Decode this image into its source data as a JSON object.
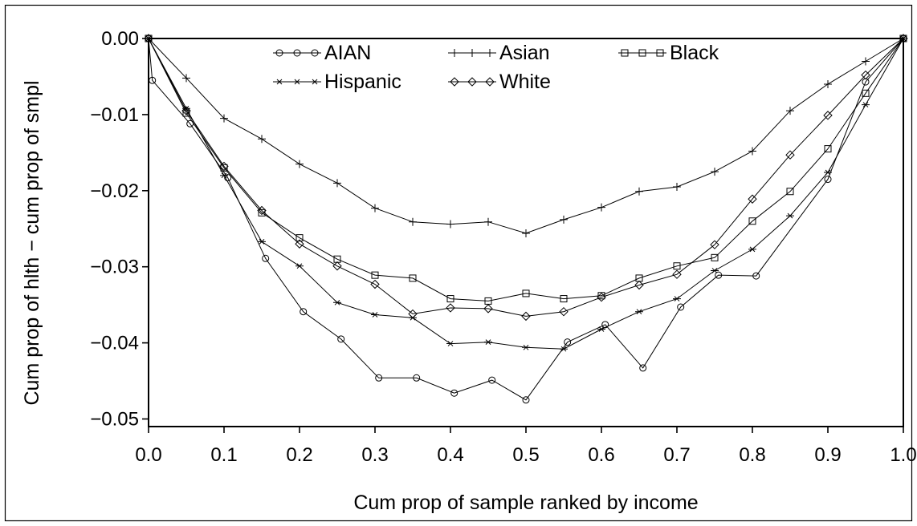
{
  "chart_data": {
    "type": "line",
    "title": "",
    "xlabel": "Cum prop of sample ranked by income",
    "ylabel": "Cum prop of hlth − cum prop of smpl",
    "xlim": [
      0.0,
      1.0
    ],
    "ylim": [
      -0.051,
      0.0
    ],
    "x_ticks": [
      "0.0",
      "0.1",
      "0.2",
      "0.3",
      "0.4",
      "0.5",
      "0.6",
      "0.7",
      "0.8",
      "0.9",
      "1.0"
    ],
    "y_ticks": [
      "0.00",
      "−0.01",
      "−0.02",
      "−0.03",
      "−0.04",
      "−0.05"
    ],
    "grid": false,
    "legend_position": "top",
    "series": [
      {
        "name": "AIAN",
        "marker": "circle",
        "x": [
          0.0,
          0.005,
          0.055,
          0.105,
          0.155,
          0.205,
          0.255,
          0.305,
          0.355,
          0.405,
          0.455,
          0.5,
          0.555,
          0.605,
          0.655,
          0.705,
          0.755,
          0.805,
          0.9,
          0.95,
          1.0
        ],
        "y": [
          0.0,
          -0.0055,
          -0.0112,
          -0.0183,
          -0.0289,
          -0.0359,
          -0.0395,
          -0.0446,
          -0.0446,
          -0.0466,
          -0.0449,
          -0.0475,
          -0.0399,
          -0.0376,
          -0.0433,
          -0.0353,
          -0.0311,
          -0.0312,
          -0.0185,
          -0.0057,
          0.0
        ]
      },
      {
        "name": "Asian",
        "marker": "plus",
        "x": [
          0.0,
          0.05,
          0.1,
          0.15,
          0.2,
          0.25,
          0.3,
          0.35,
          0.4,
          0.45,
          0.5,
          0.55,
          0.6,
          0.65,
          0.7,
          0.75,
          0.8,
          0.85,
          0.9,
          0.95,
          1.0
        ],
        "y": [
          0.0,
          -0.0052,
          -0.0105,
          -0.0132,
          -0.0165,
          -0.019,
          -0.0223,
          -0.0241,
          -0.0244,
          -0.0241,
          -0.0256,
          -0.0238,
          -0.0222,
          -0.0201,
          -0.0195,
          -0.0175,
          -0.0148,
          -0.0095,
          -0.006,
          -0.003,
          0.0
        ]
      },
      {
        "name": "Black",
        "marker": "square",
        "x": [
          0.0,
          0.05,
          0.1,
          0.15,
          0.2,
          0.25,
          0.3,
          0.35,
          0.4,
          0.45,
          0.5,
          0.55,
          0.6,
          0.65,
          0.7,
          0.75,
          0.8,
          0.85,
          0.9,
          0.95,
          1.0
        ],
        "y": [
          0.0,
          -0.0098,
          -0.017,
          -0.0229,
          -0.0262,
          -0.029,
          -0.0311,
          -0.0315,
          -0.0342,
          -0.0345,
          -0.0335,
          -0.0342,
          -0.0338,
          -0.0315,
          -0.0299,
          -0.0288,
          -0.024,
          -0.0201,
          -0.0145,
          -0.0072,
          0.0
        ]
      },
      {
        "name": "Hispanic",
        "marker": "star",
        "x": [
          0.0,
          0.05,
          0.1,
          0.15,
          0.2,
          0.25,
          0.3,
          0.35,
          0.4,
          0.45,
          0.5,
          0.55,
          0.6,
          0.65,
          0.7,
          0.75,
          0.8,
          0.85,
          0.9,
          0.95,
          1.0
        ],
        "y": [
          0.0,
          -0.0092,
          -0.018,
          -0.0267,
          -0.0299,
          -0.0347,
          -0.0363,
          -0.0367,
          -0.0401,
          -0.0399,
          -0.0406,
          -0.0408,
          -0.0382,
          -0.0359,
          -0.0342,
          -0.0305,
          -0.0277,
          -0.0233,
          -0.0176,
          -0.0087,
          0.0
        ]
      },
      {
        "name": "White",
        "marker": "diamond",
        "x": [
          0.0,
          0.05,
          0.1,
          0.15,
          0.2,
          0.25,
          0.3,
          0.35,
          0.4,
          0.45,
          0.5,
          0.55,
          0.6,
          0.65,
          0.7,
          0.75,
          0.8,
          0.85,
          0.9,
          0.95,
          1.0
        ],
        "y": [
          0.0,
          -0.0095,
          -0.0168,
          -0.0226,
          -0.027,
          -0.0299,
          -0.0323,
          -0.0362,
          -0.0354,
          -0.0355,
          -0.0365,
          -0.0359,
          -0.034,
          -0.0324,
          -0.031,
          -0.0271,
          -0.0211,
          -0.0153,
          -0.0101,
          -0.0048,
          0.0
        ]
      }
    ]
  }
}
